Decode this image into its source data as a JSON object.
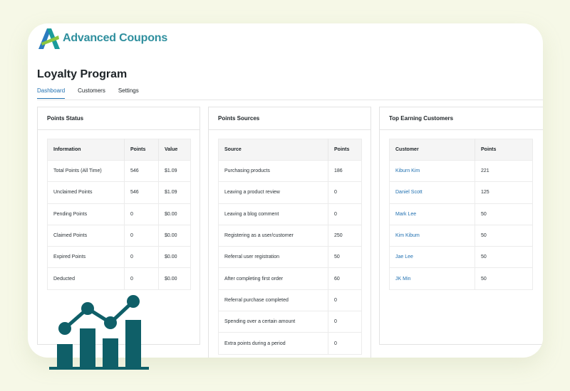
{
  "brand": {
    "name": "Advanced Coupons"
  },
  "page": {
    "title": "Loyalty Program"
  },
  "tabs": [
    {
      "label": "Dashboard",
      "active": true
    },
    {
      "label": "Customers",
      "active": false
    },
    {
      "label": "Settings",
      "active": false
    }
  ],
  "points_status": {
    "title": "Points Status",
    "columns": [
      "Information",
      "Points",
      "Value"
    ],
    "rows": [
      [
        "Total Points (All Time)",
        "546",
        "$1.09"
      ],
      [
        "Unclaimed Points",
        "546",
        "$1.09"
      ],
      [
        "Pending Points",
        "0",
        "$0.00"
      ],
      [
        "Claimed Points",
        "0",
        "$0.00"
      ],
      [
        "Expired Points",
        "0",
        "$0.00"
      ],
      [
        "Deducted",
        "0",
        "$0.00"
      ]
    ]
  },
  "points_sources": {
    "title": "Points Sources",
    "columns": [
      "Source",
      "Points"
    ],
    "rows": [
      [
        "Purchasing products",
        "186"
      ],
      [
        "Leaving a product review",
        "0"
      ],
      [
        "Leaving a blog comment",
        "0"
      ],
      [
        "Registering as a user/customer",
        "250"
      ],
      [
        "Referral user registration",
        "50"
      ],
      [
        "After completing first order",
        "60"
      ],
      [
        "Referral purchase completed",
        "0"
      ],
      [
        "Spending over a certain amount",
        "0"
      ],
      [
        "Extra points during a period",
        "0"
      ]
    ]
  },
  "top_customers": {
    "title": "Top Earning Customers",
    "columns": [
      "Customer",
      "Points"
    ],
    "rows": [
      [
        "Kiburn Kim",
        "221"
      ],
      [
        "Daniel Scott",
        "125"
      ],
      [
        "Mark Lee",
        "50"
      ],
      [
        "Kim Kibum",
        "50"
      ],
      [
        "Jae Lee",
        "50"
      ],
      [
        "JK Min",
        "50"
      ]
    ]
  },
  "colors": {
    "accent": "#2271b1",
    "brand_teal": "#2f8f9e",
    "graphic": "#0f5f68",
    "background": "#f6f8e7"
  },
  "icons": [
    "advanced-coupons-logo",
    "bar-line-chart-icon"
  ]
}
